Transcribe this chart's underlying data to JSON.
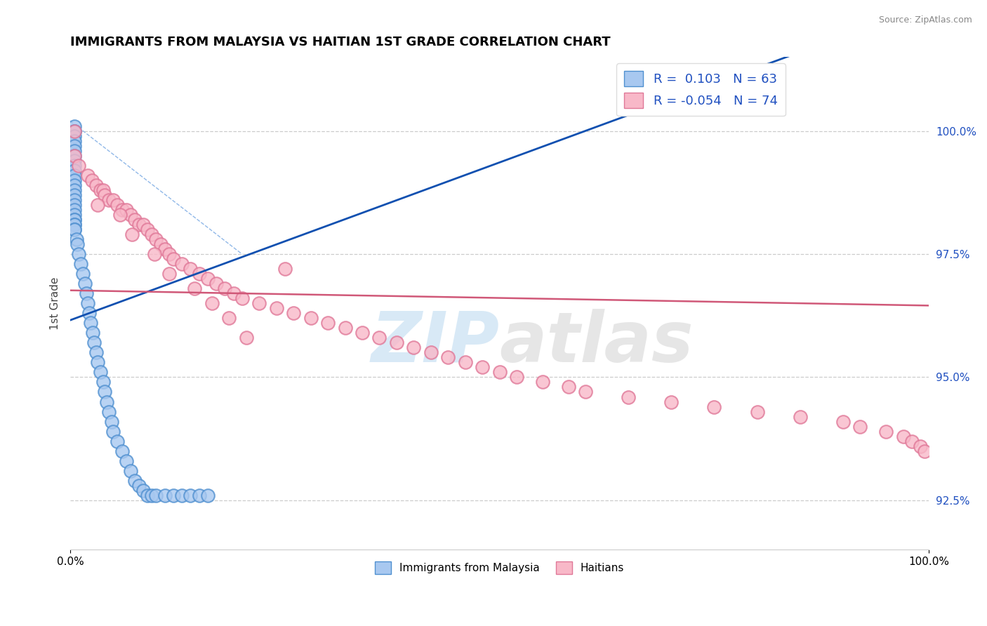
{
  "title": "IMMIGRANTS FROM MALAYSIA VS HAITIAN 1ST GRADE CORRELATION CHART",
  "source": "Source: ZipAtlas.com",
  "ylabel": "1st Grade",
  "xlim": [
    0,
    100
  ],
  "ylim": [
    91.5,
    101.5
  ],
  "yticks": [
    92.5,
    95.0,
    97.5,
    100.0
  ],
  "ytick_labels": [
    "92.5%",
    "95.0%",
    "97.5%",
    "100.0%"
  ],
  "r1_label": "R =  0.103",
  "n1_label": "N = 63",
  "r2_label": "R = -0.054",
  "n2_label": "N = 74",
  "r1": 0.103,
  "r2": -0.054,
  "n1": 63,
  "n2": 74,
  "legend_label1": "Immigrants from Malaysia",
  "legend_label2": "Haitians",
  "blue_face": "#A8C8F0",
  "blue_edge": "#5090D0",
  "pink_face": "#F8B8C8",
  "pink_edge": "#E07898",
  "blue_line_color": "#1050B0",
  "pink_line_color": "#D05878",
  "blue_dashed_color": "#90B8E8",
  "watermark": "ZIPAtlas",
  "watermark_color": "#C5DFF0",
  "grid_color": "#CCCCCC",
  "title_fontsize": 13,
  "tick_fontsize": 11,
  "source_color": "#888888",
  "axis_label_color": "#2050C0",
  "ylabel_color": "#444444",
  "blue_x": [
    0.5,
    0.5,
    0.5,
    0.5,
    0.5,
    0.5,
    0.5,
    0.5,
    0.5,
    0.5,
    0.5,
    0.5,
    0.5,
    0.5,
    0.5,
    0.5,
    0.5,
    0.5,
    0.5,
    0.5,
    0.5,
    0.5,
    0.5,
    0.5,
    0.5,
    0.5,
    0.7,
    0.8,
    1.0,
    1.2,
    1.5,
    1.7,
    1.9,
    2.0,
    2.2,
    2.4,
    2.6,
    2.8,
    3.0,
    3.2,
    3.5,
    3.8,
    4.0,
    4.2,
    4.5,
    4.8,
    5.0,
    5.5,
    6.0,
    6.5,
    7.0,
    7.5,
    8.0,
    8.5,
    9.0,
    9.5,
    10.0,
    11.0,
    12.0,
    13.0,
    14.0,
    15.0,
    16.0
  ],
  "blue_y": [
    100.1,
    100.0,
    100.0,
    99.9,
    99.8,
    99.7,
    99.6,
    99.5,
    99.4,
    99.3,
    99.2,
    99.1,
    99.0,
    98.9,
    98.8,
    98.7,
    98.6,
    98.5,
    98.4,
    98.3,
    98.2,
    98.2,
    98.1,
    98.1,
    98.0,
    98.0,
    97.8,
    97.7,
    97.5,
    97.3,
    97.1,
    96.9,
    96.7,
    96.5,
    96.3,
    96.1,
    95.9,
    95.7,
    95.5,
    95.3,
    95.1,
    94.9,
    94.7,
    94.5,
    94.3,
    94.1,
    93.9,
    93.7,
    93.5,
    93.3,
    93.1,
    92.9,
    92.8,
    92.7,
    92.6,
    92.6,
    92.6,
    92.6,
    92.6,
    92.6,
    92.6,
    92.6,
    92.6
  ],
  "pink_x": [
    0.5,
    0.5,
    1.0,
    2.0,
    2.5,
    3.0,
    3.5,
    3.8,
    4.0,
    4.5,
    5.0,
    5.5,
    6.0,
    6.5,
    7.0,
    7.5,
    8.0,
    8.5,
    9.0,
    9.5,
    10.0,
    10.5,
    11.0,
    11.5,
    12.0,
    13.0,
    14.0,
    15.0,
    16.0,
    17.0,
    18.0,
    19.0,
    20.0,
    22.0,
    24.0,
    26.0,
    28.0,
    30.0,
    32.0,
    34.0,
    36.0,
    38.0,
    40.0,
    42.0,
    44.0,
    46.0,
    48.0,
    50.0,
    52.0,
    55.0,
    58.0,
    60.0,
    65.0,
    70.0,
    75.0,
    80.0,
    85.0,
    90.0,
    92.0,
    95.0,
    97.0,
    98.0,
    99.0,
    99.5,
    3.2,
    5.8,
    7.2,
    9.8,
    11.5,
    14.5,
    16.5,
    18.5,
    20.5,
    25.0
  ],
  "pink_y": [
    100.0,
    99.5,
    99.3,
    99.1,
    99.0,
    98.9,
    98.8,
    98.8,
    98.7,
    98.6,
    98.6,
    98.5,
    98.4,
    98.4,
    98.3,
    98.2,
    98.1,
    98.1,
    98.0,
    97.9,
    97.8,
    97.7,
    97.6,
    97.5,
    97.4,
    97.3,
    97.2,
    97.1,
    97.0,
    96.9,
    96.8,
    96.7,
    96.6,
    96.5,
    96.4,
    96.3,
    96.2,
    96.1,
    96.0,
    95.9,
    95.8,
    95.7,
    95.6,
    95.5,
    95.4,
    95.3,
    95.2,
    95.1,
    95.0,
    94.9,
    94.8,
    94.7,
    94.6,
    94.5,
    94.4,
    94.3,
    94.2,
    94.1,
    94.0,
    93.9,
    93.8,
    93.7,
    93.6,
    93.5,
    98.5,
    98.3,
    97.9,
    97.5,
    97.1,
    96.8,
    96.5,
    96.2,
    95.8,
    97.2
  ]
}
